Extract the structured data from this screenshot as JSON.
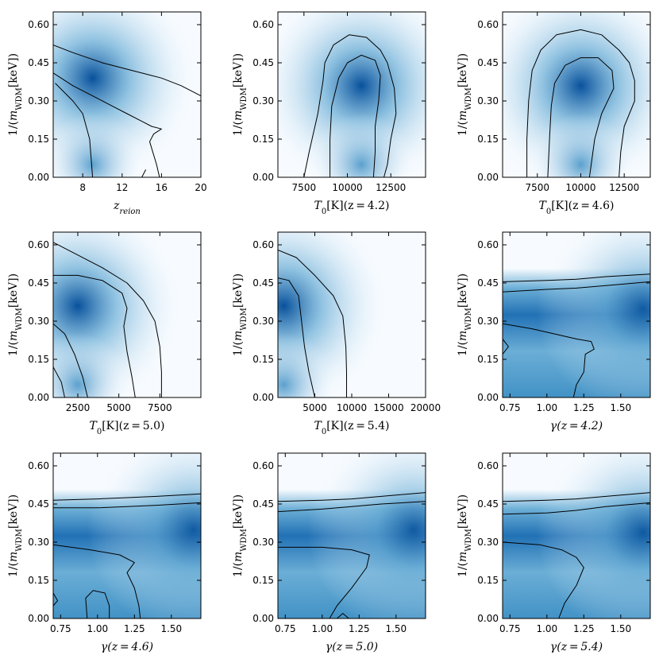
{
  "colors": {
    "cmap_light": "#f7fbff",
    "cmap_mid": "#6baed6",
    "cmap_dark": "#08519c",
    "contour": "#000000"
  },
  "chart_data": [
    {
      "type": "heatmap",
      "xlabel": "z_reion",
      "ylabel": "1/(m_WDM[keV])",
      "xlim": [
        5,
        20
      ],
      "ylim": [
        0,
        0.65
      ],
      "xticks": [
        8,
        12,
        16,
        20
      ],
      "xtick_labels": [
        "8",
        "12",
        "16",
        "20"
      ],
      "yticks": [
        0,
        0.15,
        0.3,
        0.45,
        0.6
      ],
      "ytick_labels": [
        "0.00",
        "0.15",
        "0.30",
        "0.45",
        "0.60"
      ],
      "peak": [
        9,
        0.39
      ],
      "contours": [
        [
          [
            5,
            0.52
          ],
          [
            7,
            0.49
          ],
          [
            10,
            0.45
          ],
          [
            13,
            0.42
          ],
          [
            15,
            0.4
          ],
          [
            16,
            0.39
          ],
          [
            18,
            0.36
          ],
          [
            20,
            0.32
          ]
        ],
        [
          [
            5,
            0.41
          ],
          [
            7,
            0.36
          ],
          [
            9,
            0.32
          ],
          [
            11,
            0.28
          ],
          [
            12.5,
            0.25
          ],
          [
            14,
            0.22
          ],
          [
            15,
            0.2
          ],
          [
            16,
            0.19
          ],
          [
            15.2,
            0.17
          ],
          [
            14.8,
            0.14
          ],
          [
            15.5,
            0.05
          ],
          [
            15.8,
            0
          ]
        ],
        [
          [
            5.2,
            0.37
          ],
          [
            7,
            0.3
          ],
          [
            8,
            0.25
          ],
          [
            8.7,
            0.15
          ],
          [
            8.9,
            0.05
          ],
          [
            9,
            0
          ],
          [
            14,
            0
          ],
          [
            14.4,
            0.03
          ]
        ]
      ]
    },
    {
      "type": "heatmap",
      "xlabel": "T_0[K](z=4.2)",
      "ylabel": "1/(m_WDM[keV])",
      "xlim": [
        6000,
        14500
      ],
      "ylim": [
        0,
        0.65
      ],
      "xticks": [
        7500,
        10000,
        12500
      ],
      "xtick_labels": [
        "7500",
        "10000",
        "12500"
      ],
      "yticks": [
        0,
        0.15,
        0.3,
        0.45,
        0.6
      ],
      "ytick_labels": [
        "0.00",
        "0.15",
        "0.30",
        "0.45",
        "0.60"
      ],
      "peak": [
        10800,
        0.36
      ],
      "contours": [
        [
          [
            7500,
            0
          ],
          [
            7800,
            0.1
          ],
          [
            8300,
            0.25
          ],
          [
            8600,
            0.38
          ],
          [
            8700,
            0.45
          ],
          [
            9200,
            0.52
          ],
          [
            10100,
            0.56
          ],
          [
            11100,
            0.55
          ],
          [
            11900,
            0.5
          ],
          [
            12300,
            0.45
          ],
          [
            12700,
            0.35
          ],
          [
            12800,
            0.25
          ],
          [
            12500,
            0.15
          ],
          [
            12300,
            0.05
          ],
          [
            12100,
            0
          ]
        ],
        [
          [
            9000,
            0
          ],
          [
            9000,
            0.15
          ],
          [
            9100,
            0.28
          ],
          [
            9500,
            0.39
          ],
          [
            10000,
            0.45
          ],
          [
            10800,
            0.48
          ],
          [
            11600,
            0.46
          ],
          [
            11900,
            0.4
          ],
          [
            11800,
            0.3
          ],
          [
            11600,
            0.2
          ],
          [
            11600,
            0.1
          ],
          [
            11500,
            0
          ]
        ]
      ]
    },
    {
      "type": "heatmap",
      "xlabel": "T_0[K](z=4.6)",
      "ylabel": "1/(m_WDM[keV])",
      "xlim": [
        5500,
        14000
      ],
      "ylim": [
        0,
        0.65
      ],
      "xticks": [
        7500,
        10000,
        12500
      ],
      "xtick_labels": [
        "7500",
        "10000",
        "12500"
      ],
      "yticks": [
        0,
        0.15,
        0.3,
        0.45,
        0.6
      ],
      "ytick_labels": [
        "0.00",
        "0.15",
        "0.30",
        "0.45",
        "0.60"
      ],
      "peak": [
        10000,
        0.36
      ],
      "contours": [
        [
          [
            6900,
            0
          ],
          [
            6900,
            0.15
          ],
          [
            7000,
            0.3
          ],
          [
            7200,
            0.42
          ],
          [
            7700,
            0.5
          ],
          [
            8600,
            0.56
          ],
          [
            10000,
            0.58
          ],
          [
            11200,
            0.56
          ],
          [
            12200,
            0.5
          ],
          [
            12800,
            0.45
          ],
          [
            13100,
            0.38
          ],
          [
            13100,
            0.3
          ],
          [
            12500,
            0.2
          ],
          [
            12300,
            0.1
          ],
          [
            12200,
            0
          ]
        ],
        [
          [
            8100,
            0
          ],
          [
            8200,
            0.15
          ],
          [
            8300,
            0.28
          ],
          [
            8500,
            0.37
          ],
          [
            9100,
            0.44
          ],
          [
            10000,
            0.47
          ],
          [
            11000,
            0.47
          ],
          [
            11800,
            0.42
          ],
          [
            11900,
            0.35
          ],
          [
            11200,
            0.25
          ],
          [
            10800,
            0.15
          ],
          [
            10600,
            0.05
          ],
          [
            10500,
            0
          ]
        ]
      ]
    },
    {
      "type": "heatmap",
      "xlabel": "T_0[K](z=5.0)",
      "ylabel": "1/(m_WDM[keV])",
      "xlim": [
        1000,
        10000
      ],
      "ylim": [
        0,
        0.65
      ],
      "xticks": [
        2500,
        5000,
        7500
      ],
      "xtick_labels": [
        "2500",
        "5000",
        "7500"
      ],
      "yticks": [
        0,
        0.15,
        0.3,
        0.45,
        0.6
      ],
      "ytick_labels": [
        "0.00",
        "0.15",
        "0.30",
        "0.45",
        "0.60"
      ],
      "peak": [
        2500,
        0.36
      ],
      "contours": [
        [
          [
            1000,
            0.61
          ],
          [
            2500,
            0.56
          ],
          [
            4000,
            0.51
          ],
          [
            5500,
            0.45
          ],
          [
            6500,
            0.38
          ],
          [
            7200,
            0.3
          ],
          [
            7500,
            0.2
          ],
          [
            7600,
            0.1
          ],
          [
            7600,
            0
          ]
        ],
        [
          [
            1000,
            0.48
          ],
          [
            2500,
            0.48
          ],
          [
            4000,
            0.46
          ],
          [
            5200,
            0.41
          ],
          [
            5500,
            0.35
          ],
          [
            5300,
            0.28
          ],
          [
            5500,
            0.18
          ],
          [
            5800,
            0.08
          ],
          [
            6000,
            0
          ]
        ],
        [
          [
            1000,
            0.29
          ],
          [
            1700,
            0.25
          ],
          [
            2300,
            0.17
          ],
          [
            2800,
            0.08
          ],
          [
            3100,
            0
          ]
        ],
        [
          [
            1000,
            0.12
          ],
          [
            1500,
            0.06
          ],
          [
            1700,
            0
          ]
        ]
      ]
    },
    {
      "type": "heatmap",
      "xlabel": "T_0[K](z=5.4)",
      "ylabel": "1/(m_WDM[keV])",
      "xlim": [
        0,
        20000
      ],
      "ylim": [
        0,
        0.65
      ],
      "xticks": [
        5000,
        10000,
        15000,
        20000
      ],
      "xtick_labels": [
        "5000",
        "10000",
        "15000",
        "20000"
      ],
      "yticks": [
        0,
        0.15,
        0.3,
        0.45,
        0.6
      ],
      "ytick_labels": [
        "0.00",
        "0.15",
        "0.30",
        "0.45",
        "0.60"
      ],
      "peak": [
        800,
        0.36
      ],
      "contours": [
        [
          [
            0,
            0.58
          ],
          [
            2500,
            0.55
          ],
          [
            5000,
            0.48
          ],
          [
            7500,
            0.4
          ],
          [
            8800,
            0.32
          ],
          [
            9200,
            0.2
          ],
          [
            9300,
            0.1
          ],
          [
            9300,
            0
          ]
        ],
        [
          [
            0,
            0.47
          ],
          [
            1500,
            0.46
          ],
          [
            2800,
            0.4
          ],
          [
            3200,
            0.3
          ],
          [
            3600,
            0.2
          ],
          [
            4200,
            0.1
          ],
          [
            5000,
            0
          ]
        ]
      ]
    },
    {
      "type": "heatmap",
      "xlabel": "γ(z=4.2)",
      "ylabel": "1/(m_WDM[keV])",
      "xlim": [
        0.7,
        1.7
      ],
      "ylim": [
        0,
        0.65
      ],
      "xticks": [
        0.75,
        1.0,
        1.25,
        1.5
      ],
      "xtick_labels": [
        "0.75",
        "1.00",
        "1.25",
        "1.50"
      ],
      "yticks": [
        0,
        0.15,
        0.3,
        0.45,
        0.6
      ],
      "ytick_labels": [
        "0.00",
        "0.15",
        "0.30",
        "0.45",
        "0.60"
      ],
      "peak": [
        1.65,
        0.35
      ],
      "contours": [
        [
          [
            0.7,
            0.455
          ],
          [
            1.0,
            0.46
          ],
          [
            1.2,
            0.465
          ],
          [
            1.4,
            0.475
          ],
          [
            1.7,
            0.485
          ]
        ],
        [
          [
            0.7,
            0.415
          ],
          [
            1.0,
            0.425
          ],
          [
            1.2,
            0.43
          ],
          [
            1.4,
            0.44
          ],
          [
            1.7,
            0.455
          ]
        ],
        [
          [
            0.7,
            0.29
          ],
          [
            0.9,
            0.27
          ],
          [
            1.05,
            0.25
          ],
          [
            1.2,
            0.23
          ],
          [
            1.3,
            0.22
          ],
          [
            1.32,
            0.19
          ],
          [
            1.26,
            0.17
          ],
          [
            1.25,
            0.1
          ],
          [
            1.2,
            0.05
          ],
          [
            1.18,
            0
          ]
        ],
        [
          [
            0.7,
            0.23
          ],
          [
            0.74,
            0.2
          ],
          [
            0.7,
            0.17
          ]
        ]
      ]
    },
    {
      "type": "heatmap",
      "xlabel": "γ(z=4.6)",
      "ylabel": "1/(m_WDM[keV])",
      "xlim": [
        0.7,
        1.7
      ],
      "ylim": [
        0,
        0.65
      ],
      "xticks": [
        0.75,
        1.0,
        1.25,
        1.5
      ],
      "xtick_labels": [
        "0.75",
        "1.00",
        "1.25",
        "1.50"
      ],
      "yticks": [
        0,
        0.15,
        0.3,
        0.45,
        0.6
      ],
      "ytick_labels": [
        "0.00",
        "0.15",
        "0.30",
        "0.45",
        "0.60"
      ],
      "peak": [
        1.65,
        0.35
      ],
      "contours": [
        [
          [
            0.7,
            0.465
          ],
          [
            1.0,
            0.47
          ],
          [
            1.2,
            0.475
          ],
          [
            1.4,
            0.48
          ],
          [
            1.7,
            0.49
          ]
        ],
        [
          [
            0.7,
            0.435
          ],
          [
            1.0,
            0.435
          ],
          [
            1.2,
            0.44
          ],
          [
            1.4,
            0.445
          ],
          [
            1.7,
            0.455
          ]
        ],
        [
          [
            0.7,
            0.29
          ],
          [
            0.95,
            0.27
          ],
          [
            1.15,
            0.25
          ],
          [
            1.25,
            0.22
          ],
          [
            1.2,
            0.18
          ],
          [
            1.25,
            0.12
          ],
          [
            1.28,
            0.05
          ],
          [
            1.29,
            0
          ]
        ],
        [
          [
            0.93,
            0
          ],
          [
            0.92,
            0.08
          ],
          [
            0.97,
            0.11
          ],
          [
            1.05,
            0.1
          ],
          [
            1.08,
            0.05
          ],
          [
            1.08,
            0
          ]
        ],
        [
          [
            0.7,
            0.1
          ],
          [
            0.73,
            0.07
          ],
          [
            0.7,
            0.05
          ]
        ]
      ]
    },
    {
      "type": "heatmap",
      "xlabel": "γ(z=5.0)",
      "ylabel": "1/(m_WDM[keV])",
      "xlim": [
        0.7,
        1.7
      ],
      "ylim": [
        0,
        0.65
      ],
      "xticks": [
        0.75,
        1.0,
        1.25,
        1.5
      ],
      "xtick_labels": [
        "0.75",
        "1.00",
        "1.25",
        "1.50"
      ],
      "yticks": [
        0,
        0.15,
        0.3,
        0.45,
        0.6
      ],
      "ytick_labels": [
        "0.00",
        "0.15",
        "0.30",
        "0.45",
        "0.60"
      ],
      "peak": [
        1.62,
        0.35
      ],
      "contours": [
        [
          [
            0.7,
            0.46
          ],
          [
            1.0,
            0.465
          ],
          [
            1.2,
            0.47
          ],
          [
            1.4,
            0.48
          ],
          [
            1.7,
            0.495
          ]
        ],
        [
          [
            0.7,
            0.42
          ],
          [
            1.0,
            0.43
          ],
          [
            1.2,
            0.44
          ],
          [
            1.4,
            0.45
          ],
          [
            1.7,
            0.46
          ]
        ],
        [
          [
            0.7,
            0.28
          ],
          [
            1.0,
            0.28
          ],
          [
            1.2,
            0.27
          ],
          [
            1.32,
            0.25
          ],
          [
            1.3,
            0.2
          ],
          [
            1.2,
            0.12
          ],
          [
            1.1,
            0.05
          ],
          [
            1.05,
            0
          ]
        ],
        [
          [
            1.1,
            0
          ],
          [
            1.14,
            0.02
          ],
          [
            1.18,
            0
          ]
        ]
      ]
    },
    {
      "type": "heatmap",
      "xlabel": "γ(z=5.4)",
      "ylabel": "1/(m_WDM[keV])",
      "xlim": [
        0.7,
        1.7
      ],
      "ylim": [
        0,
        0.65
      ],
      "xticks": [
        0.75,
        1.0,
        1.25,
        1.5
      ],
      "xtick_labels": [
        "0.75",
        "1.00",
        "1.25",
        "1.50"
      ],
      "yticks": [
        0,
        0.15,
        0.3,
        0.45,
        0.6
      ],
      "ytick_labels": [
        "0.00",
        "0.15",
        "0.30",
        "0.45",
        "0.60"
      ],
      "peak": [
        1.65,
        0.34
      ],
      "contours": [
        [
          [
            0.7,
            0.46
          ],
          [
            1.0,
            0.465
          ],
          [
            1.2,
            0.47
          ],
          [
            1.4,
            0.48
          ],
          [
            1.7,
            0.495
          ]
        ],
        [
          [
            0.7,
            0.41
          ],
          [
            1.0,
            0.415
          ],
          [
            1.2,
            0.425
          ],
          [
            1.4,
            0.44
          ],
          [
            1.7,
            0.455
          ]
        ],
        [
          [
            0.7,
            0.3
          ],
          [
            0.95,
            0.29
          ],
          [
            1.1,
            0.27
          ],
          [
            1.2,
            0.24
          ],
          [
            1.25,
            0.2
          ],
          [
            1.2,
            0.13
          ],
          [
            1.12,
            0.06
          ],
          [
            1.08,
            0
          ]
        ]
      ]
    }
  ]
}
